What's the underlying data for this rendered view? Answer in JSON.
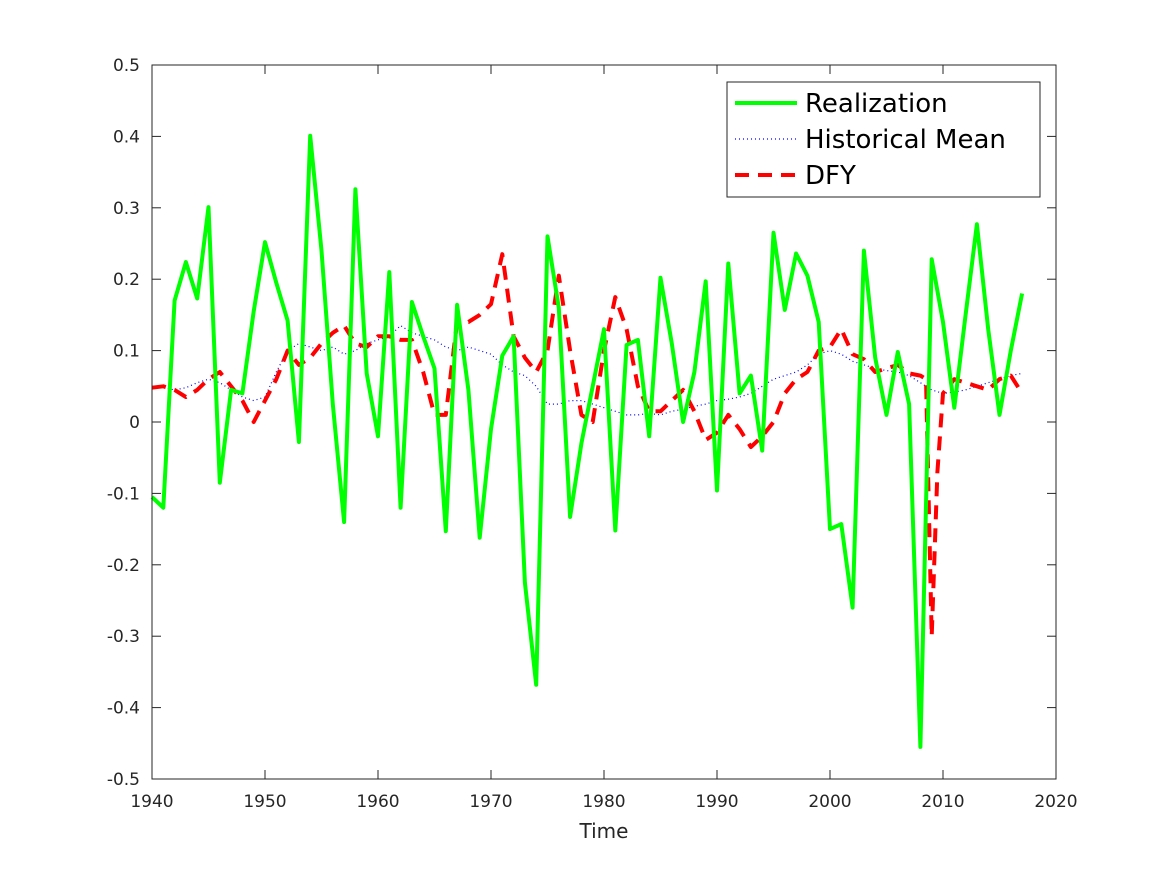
{
  "chart_data": {
    "type": "line",
    "title": "",
    "xlabel": "Time",
    "ylabel": "",
    "xlim": [
      1940,
      2020
    ],
    "ylim": [
      -0.5,
      0.5
    ],
    "xticks": [
      1940,
      1950,
      1960,
      1970,
      1980,
      1990,
      2000,
      2010,
      2020
    ],
    "xtick_labels": [
      "1940",
      "1950",
      "1960",
      "1970",
      "1980",
      "1990",
      "2000",
      "2010",
      "2020"
    ],
    "yticks": [
      0.5,
      0.4,
      0.3,
      0.2,
      0.1,
      0,
      -0.1,
      -0.2,
      -0.3,
      -0.4,
      -0.5
    ],
    "ytick_labels": [
      "0.5",
      "0.4",
      "0.3",
      "0.2",
      "0.1",
      "0",
      "-0.1",
      "-0.2",
      "-0.3",
      "-0.4",
      "-0.5"
    ],
    "grid": false,
    "legend_position": "top-right",
    "series": [
      {
        "name": "Realization",
        "color": "#00ff00",
        "style": "solid",
        "x": [
          1940,
          1941,
          1942,
          1943,
          1944,
          1945,
          1946,
          1947,
          1948,
          1949,
          1950,
          1951,
          1952,
          1953,
          1954,
          1955,
          1956,
          1957,
          1958,
          1959,
          1960,
          1961,
          1962,
          1963,
          1964,
          1965,
          1966,
          1967,
          1968,
          1969,
          1970,
          1971,
          1972,
          1973,
          1974,
          1975,
          1976,
          1977,
          1978,
          1979,
          1980,
          1981,
          1982,
          1983,
          1984,
          1985,
          1986,
          1987,
          1988,
          1989,
          1990,
          1991,
          1992,
          1993,
          1994,
          1995,
          1996,
          1997,
          1998,
          1999,
          2000,
          2001,
          2002,
          2003,
          2004,
          2005,
          2006,
          2007,
          2008,
          2009,
          2010,
          2011,
          2012,
          2013,
          2014,
          2015,
          2016,
          2017
        ],
        "y": [
          -0.105,
          -0.12,
          0.17,
          0.224,
          0.173,
          0.301,
          -0.085,
          0.045,
          0.04,
          0.155,
          0.252,
          0.195,
          0.142,
          -0.028,
          0.401,
          0.24,
          0.025,
          -0.14,
          0.326,
          0.068,
          -0.02,
          0.21,
          -0.12,
          0.168,
          0.12,
          0.075,
          -0.153,
          0.164,
          0.045,
          -0.162,
          -0.01,
          0.093,
          0.12,
          -0.225,
          -0.368,
          0.26,
          0.16,
          -0.133,
          -0.03,
          0.05,
          0.13,
          -0.152,
          0.108,
          0.115,
          -0.02,
          0.202,
          0.11,
          0.0,
          0.07,
          0.197,
          -0.096,
          0.222,
          0.04,
          0.065,
          -0.04,
          0.265,
          0.157,
          0.236,
          0.205,
          0.14,
          -0.15,
          -0.143,
          -0.26,
          0.24,
          0.09,
          0.01,
          0.098,
          0.025,
          -0.455,
          0.228,
          0.14,
          0.02,
          0.15,
          0.277,
          0.13,
          0.01,
          0.1,
          0.18
        ]
      },
      {
        "name": "Historical Mean",
        "color": "#0000ff",
        "style": "dotted",
        "x": [
          1940,
          1941,
          1942,
          1943,
          1944,
          1945,
          1946,
          1947,
          1948,
          1949,
          1950,
          1951,
          1952,
          1953,
          1954,
          1955,
          1956,
          1957,
          1958,
          1959,
          1960,
          1961,
          1962,
          1963,
          1964,
          1965,
          1966,
          1967,
          1968,
          1969,
          1970,
          1971,
          1972,
          1973,
          1974,
          1975,
          1976,
          1977,
          1978,
          1979,
          1980,
          1981,
          1982,
          1983,
          1984,
          1985,
          1986,
          1987,
          1988,
          1989,
          1990,
          1991,
          1992,
          1993,
          1994,
          1995,
          1996,
          1997,
          1998,
          1999,
          2000,
          2001,
          2002,
          2003,
          2004,
          2005,
          2006,
          2007,
          2008,
          2009,
          2010,
          2011,
          2012,
          2013,
          2014,
          2015,
          2016,
          2017
        ],
        "y": [
          0.05,
          0.048,
          0.045,
          0.048,
          0.055,
          0.06,
          0.055,
          0.045,
          0.035,
          0.03,
          0.035,
          0.07,
          0.1,
          0.11,
          0.105,
          0.1,
          0.105,
          0.095,
          0.1,
          0.11,
          0.115,
          0.12,
          0.135,
          0.125,
          0.12,
          0.115,
          0.105,
          0.1,
          0.105,
          0.1,
          0.095,
          0.08,
          0.07,
          0.065,
          0.05,
          0.025,
          0.025,
          0.03,
          0.03,
          0.025,
          0.02,
          0.015,
          0.01,
          0.01,
          0.012,
          0.01,
          0.015,
          0.018,
          0.022,
          0.025,
          0.03,
          0.032,
          0.035,
          0.04,
          0.05,
          0.06,
          0.065,
          0.07,
          0.08,
          0.095,
          0.1,
          0.095,
          0.085,
          0.08,
          0.075,
          0.072,
          0.07,
          0.065,
          0.055,
          0.045,
          0.04,
          0.042,
          0.045,
          0.05,
          0.055,
          0.06,
          0.065,
          0.068
        ]
      },
      {
        "name": "DFY",
        "color": "#ff0000",
        "style": "dashed",
        "x": [
          1940,
          1941,
          1942,
          1943,
          1944,
          1945,
          1946,
          1947,
          1948,
          1949,
          1950,
          1951,
          1952,
          1953,
          1954,
          1955,
          1956,
          1957,
          1958,
          1959,
          1960,
          1961,
          1962,
          1963,
          1964,
          1965,
          1966,
          1967,
          1968,
          1969,
          1970,
          1971,
          1972,
          1973,
          1974,
          1975,
          1976,
          1977,
          1978,
          1979,
          1980,
          1981,
          1982,
          1983,
          1984,
          1985,
          1986,
          1987,
          1988,
          1989,
          1990,
          1991,
          1992,
          1993,
          1994,
          1995,
          1996,
          1997,
          1998,
          1999,
          2000,
          2001,
          2002,
          2003,
          2004,
          2005,
          2006,
          2007,
          2008,
          2008.5,
          2009,
          2009.5,
          2010,
          2011,
          2012,
          2013,
          2014,
          2015,
          2016,
          2017
        ],
        "y": [
          0.048,
          0.05,
          0.045,
          0.035,
          0.045,
          0.06,
          0.07,
          0.05,
          0.03,
          0.0,
          0.03,
          0.06,
          0.1,
          0.08,
          0.09,
          0.11,
          0.125,
          0.135,
          0.11,
          0.105,
          0.12,
          0.12,
          0.115,
          0.115,
          0.07,
          0.01,
          0.01,
          0.14,
          0.14,
          0.15,
          0.165,
          0.235,
          0.12,
          0.09,
          0.07,
          0.1,
          0.205,
          0.1,
          0.01,
          0.0,
          0.1,
          0.175,
          0.13,
          0.05,
          0.015,
          0.015,
          0.03,
          0.045,
          0.015,
          -0.025,
          -0.015,
          0.01,
          -0.01,
          -0.035,
          -0.02,
          0.0,
          0.04,
          0.06,
          0.07,
          0.1,
          0.105,
          0.13,
          0.095,
          0.088,
          0.07,
          0.075,
          0.08,
          0.068,
          0.065,
          0.06,
          -0.3,
          -0.07,
          0.04,
          0.06,
          0.055,
          0.05,
          0.045,
          0.06,
          0.065,
          0.04
        ]
      }
    ]
  }
}
